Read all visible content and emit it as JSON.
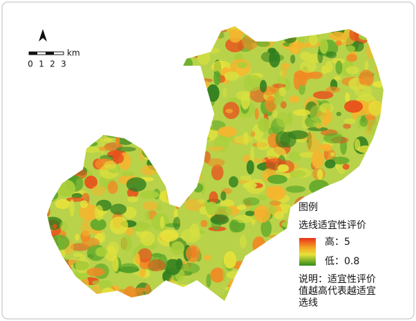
{
  "scale_bar": {
    "unit": "km",
    "labels": [
      "0",
      "1",
      "2",
      "3"
    ]
  },
  "legend": {
    "title": "图例",
    "subtitle": "选线适宜性评价",
    "high": "高：5",
    "low": "低：0.8"
  },
  "note": [
    "说明：适宜性评价",
    "值越高代表越适宜",
    "选线"
  ]
}
